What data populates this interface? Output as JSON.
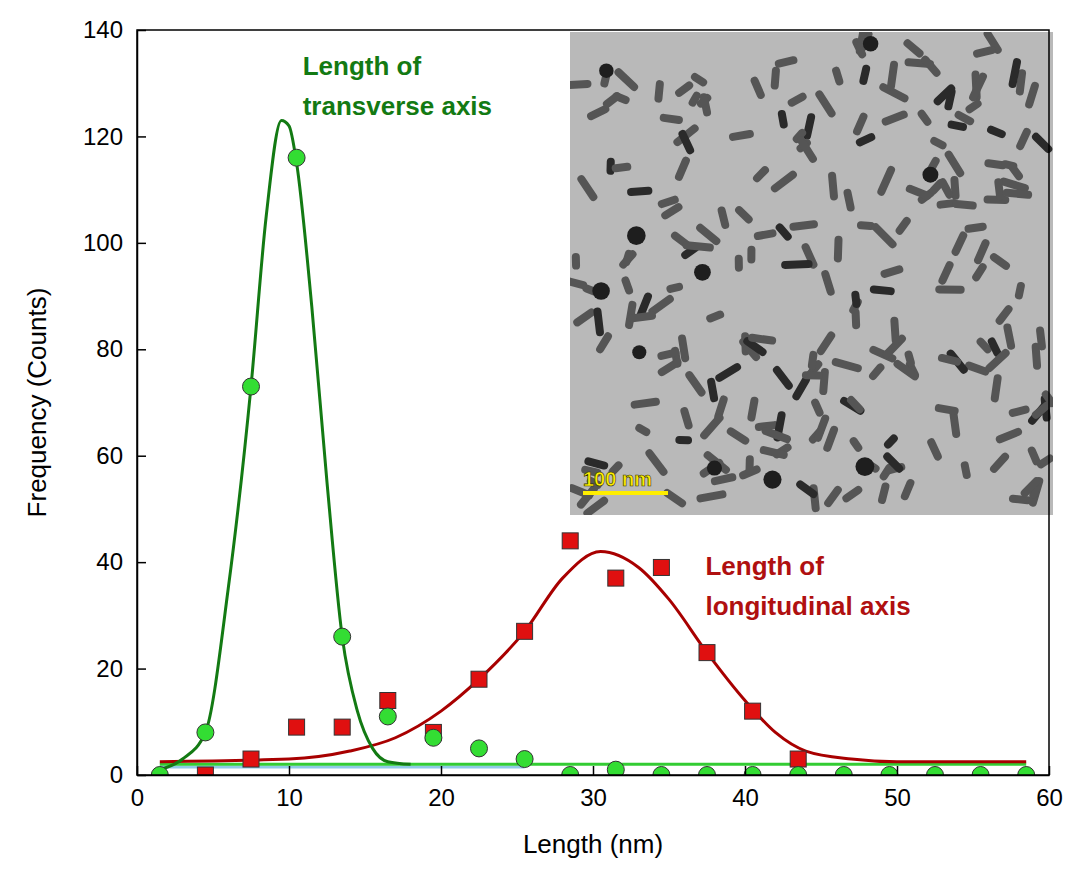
{
  "chart_data": {
    "type": "scatter",
    "xlabel": "Length (nm)",
    "ylabel": "Frequency (Counts)",
    "xlim": [
      0,
      60
    ],
    "ylim": [
      0,
      140
    ],
    "xticks": [
      0,
      10,
      20,
      30,
      40,
      50,
      60
    ],
    "yticks": [
      0,
      20,
      40,
      60,
      80,
      100,
      120,
      140
    ],
    "grid": false,
    "series": [
      {
        "type": "line",
        "color": "#8ecae6",
        "line_style": "solid",
        "x": [
          1.5,
          25.5
        ],
        "values": [
          1.5,
          1.5
        ]
      },
      {
        "type": "line",
        "color": "#33cc33",
        "line_style": "solid",
        "x": [
          1.5,
          58.5
        ],
        "values": [
          2,
          2
        ]
      },
      {
        "type": "line",
        "color": "#a80000",
        "line_style": "solid",
        "x": [
          1.5,
          10,
          14,
          17,
          20,
          22.5,
          25.5,
          28,
          30.5,
          33,
          35,
          37.5,
          40,
          42,
          44,
          47,
          50,
          58.5
        ],
        "values": [
          2.5,
          3,
          4.5,
          7,
          12,
          18,
          27,
          37,
          42,
          39,
          33,
          23,
          14,
          8,
          4.5,
          3,
          2.5,
          2.5
        ]
      },
      {
        "type": "line",
        "color": "#137a13",
        "line_style": "solid",
        "x": [
          1.5,
          3,
          4.5,
          6,
          7.5,
          8.5,
          9.5,
          10,
          10.5,
          11.5,
          12.5,
          13.5,
          14.5,
          15.5,
          16.5,
          18
        ],
        "values": [
          1,
          3,
          8,
          35,
          73,
          105,
          123,
          122,
          115,
          88,
          55,
          26,
          12,
          5,
          2.5,
          2
        ]
      },
      {
        "type": "scatter",
        "color": "#e01010",
        "marker": "square",
        "x": [
          4.5,
          7.5,
          10.5,
          13.5,
          16.5,
          19.5,
          22.5,
          25.5,
          28.5,
          31.5,
          34.5,
          37.5,
          40.5,
          43.5
        ],
        "values": [
          0,
          3,
          9,
          9,
          14,
          8,
          18,
          27,
          44,
          37,
          39,
          23,
          12,
          3
        ]
      },
      {
        "type": "scatter",
        "color": "#33dd33",
        "marker": "circle",
        "x": [
          1.5,
          4.5,
          7.5,
          10.5,
          13.5,
          16.5,
          19.5,
          22.5,
          25.5,
          28.5,
          31.5,
          34.5,
          37.5,
          40.5,
          43.5,
          46.5,
          49.5,
          52.5,
          55.5,
          58.5
        ],
        "values": [
          0,
          8,
          73,
          116,
          26,
          11,
          7,
          5,
          3,
          0,
          1,
          0,
          0,
          0,
          0,
          0,
          0,
          0,
          0,
          0
        ]
      }
    ],
    "annotations": [
      {
        "lines": [
          "Length of",
          "transverse axis"
        ],
        "x": 10.9,
        "y": 131.5,
        "color": "#137a13"
      },
      {
        "lines": [
          "Length of",
          "longitudinal axis"
        ],
        "x": 37.4,
        "y": 37.5,
        "color": "#b01010"
      }
    ]
  },
  "inset": {
    "scale_bar_label": "100 nm"
  }
}
